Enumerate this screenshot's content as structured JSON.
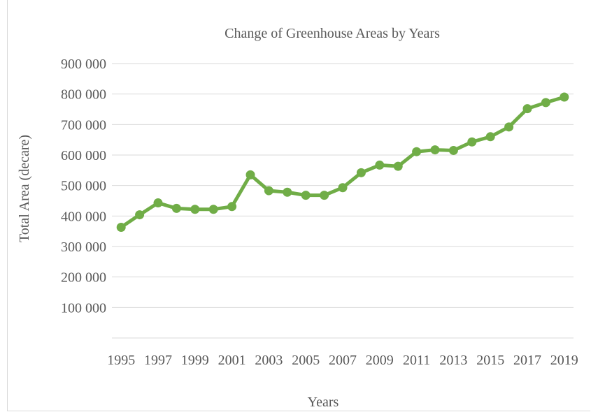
{
  "chart_data": {
    "type": "line",
    "title": "Change of Greenhouse Areas by Years",
    "xlabel": "Years",
    "ylabel": "Total Area (decare)",
    "ylim": [
      0,
      900000
    ],
    "yticks": [
      "100 000",
      "200 000",
      "300 000",
      "400 000",
      "500 000",
      "600 000",
      "700 000",
      "800 000",
      "900 000"
    ],
    "ytick_values": [
      100000,
      200000,
      300000,
      400000,
      500000,
      600000,
      700000,
      800000,
      900000
    ],
    "xtick_labels": [
      "1995",
      "1997",
      "1999",
      "2001",
      "2003",
      "2005",
      "2007",
      "2009",
      "2011",
      "2013",
      "2015",
      "2017",
      "2019"
    ],
    "grid": true,
    "x": [
      1995,
      1996,
      1997,
      1998,
      1999,
      2000,
      2001,
      2002,
      2003,
      2004,
      2005,
      2006,
      2007,
      2008,
      2009,
      2010,
      2011,
      2012,
      2013,
      2014,
      2015,
      2016,
      2017,
      2018,
      2019
    ],
    "series": [
      {
        "values": [
          363000,
          404000,
          443000,
          425000,
          422000,
          422000,
          431000,
          535000,
          483000,
          478000,
          468000,
          468000,
          493000,
          542000,
          567000,
          563000,
          611000,
          617000,
          615000,
          643000,
          660000,
          692000,
          752000,
          772000,
          790000
        ],
        "color": "#70ad47"
      }
    ],
    "gridline_color": "#d9d9d9"
  }
}
